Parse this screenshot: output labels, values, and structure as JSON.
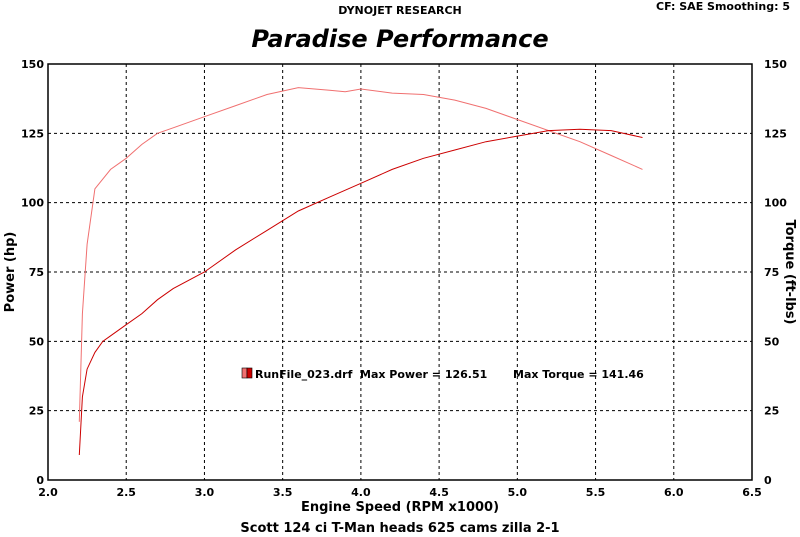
{
  "header": {
    "company": "DYNOJET RESEARCH",
    "settings": "CF: SAE  Smoothing: 5"
  },
  "colors": {
    "power": "#cc0000",
    "torque": "#f07070",
    "grid": "#000000"
  },
  "chart_data": {
    "type": "line",
    "title": "Paradise Performance",
    "xlabel": "Engine Speed (RPM x1000)",
    "ylabel": "Power (hp)",
    "y2label": "Torque (ft-lbs)",
    "footer": "Scott 124 ci T-Man heads 625 cams zilla 2-1",
    "xlim": [
      2.0,
      6.5
    ],
    "ylim": [
      0,
      150
    ],
    "y2lim": [
      0,
      150
    ],
    "xticks": [
      "2.0",
      "2.5",
      "3.0",
      "3.5",
      "4.0",
      "4.5",
      "5.0",
      "5.5",
      "6.0",
      "6.5"
    ],
    "yticks": [
      "0",
      "25",
      "50",
      "75",
      "100",
      "125",
      "150"
    ],
    "y2ticks": [
      "0",
      "25",
      "50",
      "75",
      "100",
      "125",
      "150"
    ],
    "grid": true,
    "legend": {
      "file": "RunFile_023.drf",
      "max_power_label": "Max Power = 126.51",
      "max_torque_label": "Max Torque = 141.46"
    },
    "series": [
      {
        "key": "power",
        "axis": "left",
        "x": [
          2.2,
          2.22,
          2.25,
          2.3,
          2.35,
          2.4,
          2.5,
          2.6,
          2.7,
          2.8,
          3.0,
          3.2,
          3.4,
          3.6,
          3.8,
          4.0,
          4.2,
          4.4,
          4.6,
          4.8,
          5.0,
          5.2,
          5.4,
          5.6,
          5.8
        ],
        "values": [
          9,
          30,
          40,
          46,
          50,
          52,
          56,
          60,
          65,
          69,
          75,
          83,
          90,
          97,
          102,
          107,
          112,
          116,
          119,
          122,
          124,
          126,
          126.5,
          126,
          123.5
        ]
      },
      {
        "key": "torque",
        "axis": "right",
        "x": [
          2.2,
          2.22,
          2.25,
          2.3,
          2.4,
          2.5,
          2.6,
          2.7,
          2.8,
          3.0,
          3.2,
          3.4,
          3.6,
          3.8,
          3.9,
          4.0,
          4.2,
          4.4,
          4.6,
          4.8,
          5.0,
          5.2,
          5.4,
          5.6,
          5.8
        ],
        "values": [
          21,
          60,
          85,
          105,
          112,
          116,
          121,
          125,
          127,
          131,
          135,
          139,
          141.5,
          140.5,
          140,
          141,
          139.5,
          139,
          137,
          134,
          130,
          126,
          122,
          117,
          112
        ]
      }
    ]
  }
}
